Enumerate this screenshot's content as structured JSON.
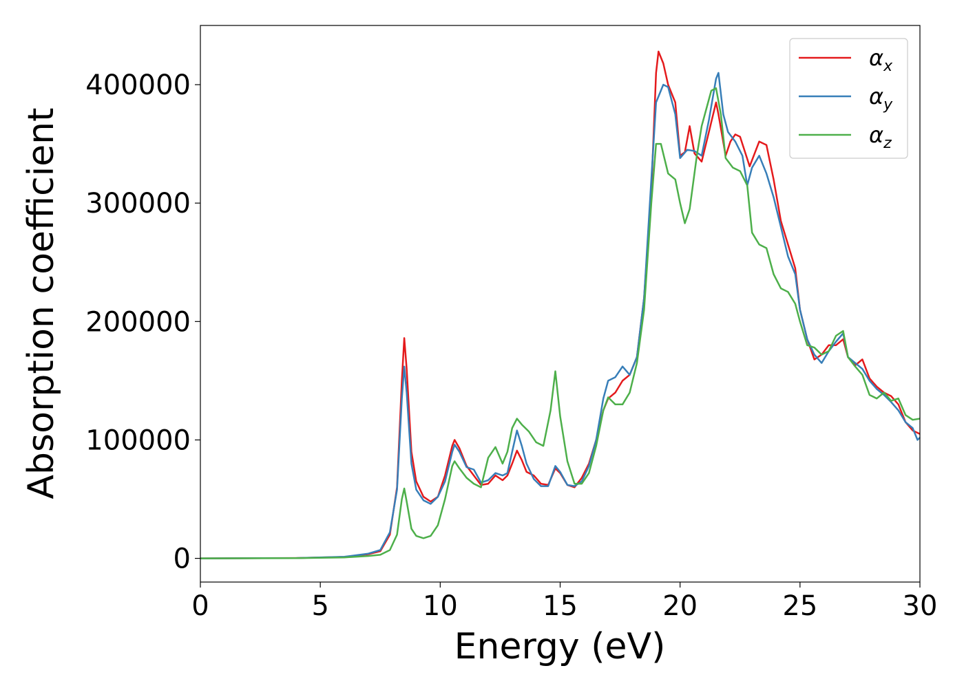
{
  "chart_data": {
    "type": "line",
    "xlabel": "Energy (eV)",
    "ylabel": "Absorption coefficient",
    "xlim": [
      0,
      30
    ],
    "ylim": [
      -20000,
      450000
    ],
    "xticks": [
      0,
      5,
      10,
      15,
      20,
      25,
      30
    ],
    "xtick_labels": [
      "0",
      "5",
      "10",
      "15",
      "20",
      "25",
      "30"
    ],
    "yticks": [
      0,
      100000,
      200000,
      300000,
      400000
    ],
    "ytick_labels": [
      "0",
      "100000",
      "200000",
      "300000",
      "400000"
    ],
    "grid": false,
    "legend_position": "top-right",
    "series": [
      {
        "name": "αx",
        "symbol": "α",
        "subscript": "x",
        "color": "#e41a1c",
        "points": [
          [
            0,
            0
          ],
          [
            4,
            300
          ],
          [
            6,
            1200
          ],
          [
            7,
            3500
          ],
          [
            7.5,
            6000
          ],
          [
            7.9,
            20000
          ],
          [
            8.2,
            60000
          ],
          [
            8.4,
            150000
          ],
          [
            8.5,
            186000
          ],
          [
            8.6,
            160000
          ],
          [
            8.8,
            90000
          ],
          [
            9.0,
            65000
          ],
          [
            9.3,
            52000
          ],
          [
            9.6,
            48000
          ],
          [
            9.9,
            52000
          ],
          [
            10.2,
            70000
          ],
          [
            10.5,
            95000
          ],
          [
            10.6,
            100000
          ],
          [
            10.8,
            93000
          ],
          [
            11.1,
            78000
          ],
          [
            11.4,
            70000
          ],
          [
            11.7,
            62000
          ],
          [
            12.0,
            63000
          ],
          [
            12.3,
            70000
          ],
          [
            12.6,
            66000
          ],
          [
            12.8,
            70000
          ],
          [
            13.0,
            80000
          ],
          [
            13.2,
            91000
          ],
          [
            13.4,
            83000
          ],
          [
            13.6,
            73000
          ],
          [
            13.9,
            70000
          ],
          [
            14.2,
            63000
          ],
          [
            14.5,
            62000
          ],
          [
            14.8,
            76000
          ],
          [
            15.0,
            72000
          ],
          [
            15.3,
            62000
          ],
          [
            15.6,
            60000
          ],
          [
            15.9,
            68000
          ],
          [
            16.2,
            80000
          ],
          [
            16.5,
            100000
          ],
          [
            16.8,
            125000
          ],
          [
            17.0,
            135000
          ],
          [
            17.3,
            140000
          ],
          [
            17.6,
            150000
          ],
          [
            17.9,
            155000
          ],
          [
            18.2,
            170000
          ],
          [
            18.5,
            220000
          ],
          [
            18.8,
            310000
          ],
          [
            19.0,
            410000
          ],
          [
            19.1,
            428000
          ],
          [
            19.3,
            418000
          ],
          [
            19.5,
            400000
          ],
          [
            19.8,
            385000
          ],
          [
            20.0,
            340000
          ],
          [
            20.2,
            343000
          ],
          [
            20.4,
            365000
          ],
          [
            20.6,
            342000
          ],
          [
            20.9,
            335000
          ],
          [
            21.2,
            360000
          ],
          [
            21.5,
            385000
          ],
          [
            21.6,
            375000
          ],
          [
            21.9,
            340000
          ],
          [
            22.1,
            352000
          ],
          [
            22.3,
            358000
          ],
          [
            22.5,
            356000
          ],
          [
            22.9,
            331000
          ],
          [
            23.3,
            352000
          ],
          [
            23.6,
            349000
          ],
          [
            23.9,
            320000
          ],
          [
            24.2,
            285000
          ],
          [
            24.5,
            265000
          ],
          [
            24.8,
            245000
          ],
          [
            25.0,
            210000
          ],
          [
            25.3,
            185000
          ],
          [
            25.6,
            168000
          ],
          [
            25.9,
            172000
          ],
          [
            26.2,
            180000
          ],
          [
            26.5,
            180000
          ],
          [
            26.8,
            185000
          ],
          [
            27.0,
            170000
          ],
          [
            27.3,
            163000
          ],
          [
            27.6,
            168000
          ],
          [
            27.9,
            152000
          ],
          [
            28.2,
            145000
          ],
          [
            28.5,
            140000
          ],
          [
            28.8,
            137000
          ],
          [
            29.1,
            130000
          ],
          [
            29.4,
            115000
          ],
          [
            29.7,
            108000
          ],
          [
            30,
            105000
          ]
        ]
      },
      {
        "name": "αy",
        "symbol": "α",
        "subscript": "y",
        "color": "#377eb8",
        "points": [
          [
            0,
            0
          ],
          [
            4,
            300
          ],
          [
            6,
            1300
          ],
          [
            7,
            4000
          ],
          [
            7.5,
            7000
          ],
          [
            7.9,
            22000
          ],
          [
            8.2,
            58000
          ],
          [
            8.4,
            135000
          ],
          [
            8.5,
            162000
          ],
          [
            8.6,
            140000
          ],
          [
            8.8,
            80000
          ],
          [
            9.0,
            58000
          ],
          [
            9.3,
            49000
          ],
          [
            9.6,
            46000
          ],
          [
            9.9,
            52000
          ],
          [
            10.2,
            65000
          ],
          [
            10.5,
            90000
          ],
          [
            10.6,
            96000
          ],
          [
            10.8,
            90000
          ],
          [
            11.1,
            77000
          ],
          [
            11.4,
            75000
          ],
          [
            11.7,
            64000
          ],
          [
            12.0,
            66000
          ],
          [
            12.3,
            72000
          ],
          [
            12.6,
            70000
          ],
          [
            12.8,
            72000
          ],
          [
            13.0,
            90000
          ],
          [
            13.2,
            108000
          ],
          [
            13.4,
            95000
          ],
          [
            13.6,
            80000
          ],
          [
            13.9,
            67000
          ],
          [
            14.2,
            61000
          ],
          [
            14.5,
            61000
          ],
          [
            14.8,
            78000
          ],
          [
            15.0,
            73000
          ],
          [
            15.3,
            62000
          ],
          [
            15.6,
            61000
          ],
          [
            15.9,
            65000
          ],
          [
            16.2,
            78000
          ],
          [
            16.5,
            100000
          ],
          [
            16.8,
            135000
          ],
          [
            17.0,
            150000
          ],
          [
            17.3,
            153000
          ],
          [
            17.6,
            162000
          ],
          [
            17.9,
            155000
          ],
          [
            18.2,
            170000
          ],
          [
            18.5,
            220000
          ],
          [
            18.8,
            320000
          ],
          [
            19.0,
            385000
          ],
          [
            19.3,
            400000
          ],
          [
            19.5,
            398000
          ],
          [
            19.8,
            375000
          ],
          [
            20.0,
            338000
          ],
          [
            20.3,
            345000
          ],
          [
            20.6,
            344000
          ],
          [
            20.9,
            340000
          ],
          [
            21.2,
            370000
          ],
          [
            21.5,
            405000
          ],
          [
            21.6,
            410000
          ],
          [
            21.8,
            375000
          ],
          [
            22.0,
            360000
          ],
          [
            22.3,
            352000
          ],
          [
            22.6,
            340000
          ],
          [
            22.8,
            315000
          ],
          [
            23.0,
            330000
          ],
          [
            23.3,
            340000
          ],
          [
            23.6,
            325000
          ],
          [
            23.9,
            305000
          ],
          [
            24.2,
            280000
          ],
          [
            24.5,
            255000
          ],
          [
            24.8,
            240000
          ],
          [
            25.0,
            210000
          ],
          [
            25.3,
            185000
          ],
          [
            25.6,
            172000
          ],
          [
            25.9,
            165000
          ],
          [
            26.2,
            175000
          ],
          [
            26.5,
            183000
          ],
          [
            26.8,
            190000
          ],
          [
            27.0,
            170000
          ],
          [
            27.3,
            165000
          ],
          [
            27.6,
            160000
          ],
          [
            27.9,
            150000
          ],
          [
            28.2,
            143000
          ],
          [
            28.5,
            138000
          ],
          [
            28.8,
            132000
          ],
          [
            29.1,
            125000
          ],
          [
            29.4,
            115000
          ],
          [
            29.7,
            110000
          ],
          [
            29.9,
            100000
          ],
          [
            30,
            102000
          ]
        ]
      },
      {
        "name": "αz",
        "symbol": "α",
        "subscript": "z",
        "color": "#4daf4a",
        "points": [
          [
            0,
            0
          ],
          [
            4,
            200
          ],
          [
            6,
            800
          ],
          [
            7,
            2000
          ],
          [
            7.5,
            3000
          ],
          [
            7.9,
            7000
          ],
          [
            8.2,
            20000
          ],
          [
            8.4,
            50000
          ],
          [
            8.5,
            59000
          ],
          [
            8.6,
            48000
          ],
          [
            8.8,
            25000
          ],
          [
            9.0,
            19000
          ],
          [
            9.3,
            17000
          ],
          [
            9.6,
            19000
          ],
          [
            9.9,
            28000
          ],
          [
            10.2,
            50000
          ],
          [
            10.5,
            78000
          ],
          [
            10.6,
            82000
          ],
          [
            10.8,
            76000
          ],
          [
            11.1,
            68000
          ],
          [
            11.4,
            63000
          ],
          [
            11.7,
            60000
          ],
          [
            12.0,
            85000
          ],
          [
            12.3,
            94000
          ],
          [
            12.6,
            80000
          ],
          [
            12.8,
            90000
          ],
          [
            13.0,
            110000
          ],
          [
            13.2,
            118000
          ],
          [
            13.4,
            113000
          ],
          [
            13.7,
            107000
          ],
          [
            14.0,
            98000
          ],
          [
            14.3,
            95000
          ],
          [
            14.6,
            125000
          ],
          [
            14.8,
            158000
          ],
          [
            15.0,
            120000
          ],
          [
            15.3,
            82000
          ],
          [
            15.6,
            63000
          ],
          [
            15.9,
            63000
          ],
          [
            16.2,
            72000
          ],
          [
            16.5,
            95000
          ],
          [
            16.8,
            125000
          ],
          [
            17.0,
            136000
          ],
          [
            17.3,
            130000
          ],
          [
            17.6,
            130000
          ],
          [
            17.9,
            140000
          ],
          [
            18.2,
            165000
          ],
          [
            18.5,
            210000
          ],
          [
            18.8,
            300000
          ],
          [
            19.0,
            350000
          ],
          [
            19.2,
            350000
          ],
          [
            19.5,
            325000
          ],
          [
            19.8,
            320000
          ],
          [
            20.0,
            300000
          ],
          [
            20.2,
            283000
          ],
          [
            20.4,
            295000
          ],
          [
            20.7,
            340000
          ],
          [
            20.9,
            365000
          ],
          [
            21.1,
            380000
          ],
          [
            21.3,
            395000
          ],
          [
            21.5,
            397000
          ],
          [
            21.7,
            375000
          ],
          [
            21.9,
            338000
          ],
          [
            22.2,
            330000
          ],
          [
            22.5,
            327000
          ],
          [
            22.8,
            315000
          ],
          [
            23.0,
            275000
          ],
          [
            23.3,
            265000
          ],
          [
            23.6,
            262000
          ],
          [
            23.9,
            240000
          ],
          [
            24.2,
            228000
          ],
          [
            24.5,
            225000
          ],
          [
            24.8,
            215000
          ],
          [
            25.0,
            200000
          ],
          [
            25.3,
            180000
          ],
          [
            25.6,
            178000
          ],
          [
            25.9,
            172000
          ],
          [
            26.2,
            175000
          ],
          [
            26.5,
            188000
          ],
          [
            26.8,
            192000
          ],
          [
            27.0,
            170000
          ],
          [
            27.3,
            162000
          ],
          [
            27.6,
            155000
          ],
          [
            27.9,
            138000
          ],
          [
            28.2,
            135000
          ],
          [
            28.5,
            140000
          ],
          [
            28.8,
            133000
          ],
          [
            29.1,
            135000
          ],
          [
            29.4,
            121000
          ],
          [
            29.7,
            117000
          ],
          [
            30,
            118000
          ]
        ]
      }
    ]
  }
}
